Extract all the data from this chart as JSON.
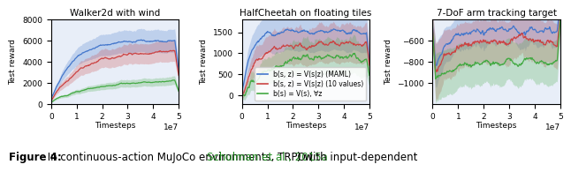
{
  "title1": "Walker2d with wind",
  "title2": "HalfCheetah on floating tiles",
  "title3": "7-DoF arm tracking target",
  "xlabel": "Timesteps",
  "ylabel": "Test reward",
  "xlim": [
    0,
    50000000.0
  ],
  "xticks": [
    0,
    10000000.0,
    20000000.0,
    30000000.0,
    40000000.0,
    50000000.0
  ],
  "xtick_labels": [
    "0",
    "1",
    "2",
    "3",
    "4",
    "5"
  ],
  "xoffset_label": "1e7",
  "plot1_ylim": [
    0,
    8000
  ],
  "plot1_yticks": [
    0,
    2000,
    4000,
    6000,
    8000
  ],
  "plot2_ylim": [
    -200,
    1800
  ],
  "plot2_yticks": [
    0,
    500,
    1000,
    1500
  ],
  "plot3_ylim": [
    -1200,
    -400
  ],
  "plot3_yticks": [
    -1000,
    -800,
    -600
  ],
  "color_blue": "#4477CC",
  "color_red": "#CC4444",
  "color_green": "#44AA44",
  "fill_alpha": 0.25,
  "bg_color": "#E8EEF8",
  "legend_labels": [
    "b(s, z) = V(s|z) (MAML)",
    "b(s, z) = V(s|z) (10 values)",
    "b(s) = V(s), ∀z"
  ],
  "caption_bold": "Figure 4:",
  "caption_text": " In continuous-action MuJoCo environments, TRPO (",
  "caption_link": "Schulman et al., 2015a",
  "caption_end": ") with input-dependent",
  "caption_link_color": "#228B22",
  "caption_fontsize": 8.5
}
